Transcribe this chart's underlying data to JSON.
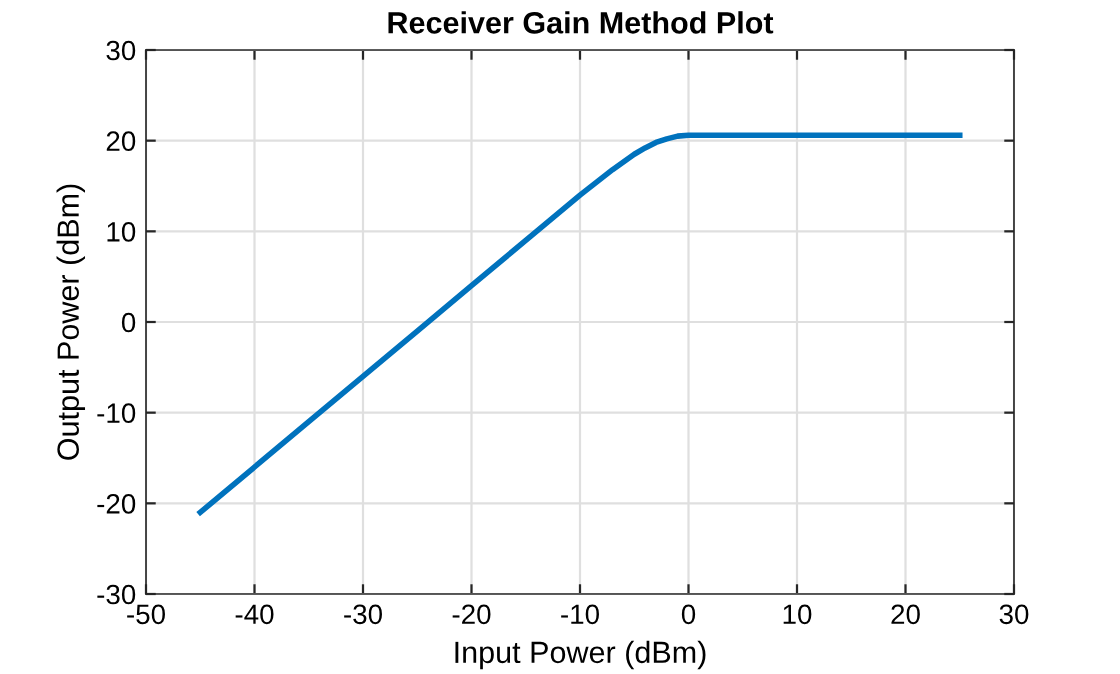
{
  "chart_data": {
    "type": "line",
    "title": "Receiver Gain Method Plot",
    "xlabel": "Input Power (dBm)",
    "ylabel": "Output Power (dBm)",
    "series": [
      {
        "color": "#0072bd",
        "x": [
          -45,
          -35,
          -25,
          -20,
          -15,
          -10,
          -7,
          -5,
          -4,
          -3,
          -2,
          -1,
          0,
          10,
          25
        ],
        "values": [
          -21,
          -11,
          -1,
          4,
          9,
          14,
          16.8,
          18.5,
          19.2,
          19.8,
          20.2,
          20.5,
          20.6,
          20.6,
          20.6
        ]
      }
    ],
    "xlim": [
      -50,
      30
    ],
    "xticks": [
      -50,
      -40,
      -30,
      -20,
      -10,
      0,
      10,
      20,
      30
    ],
    "ylim": [
      -30,
      30
    ],
    "yticks": [
      -30,
      -20,
      -10,
      0,
      10,
      20,
      30
    ],
    "grid": true,
    "line_style": "solid",
    "marker": "none"
  }
}
